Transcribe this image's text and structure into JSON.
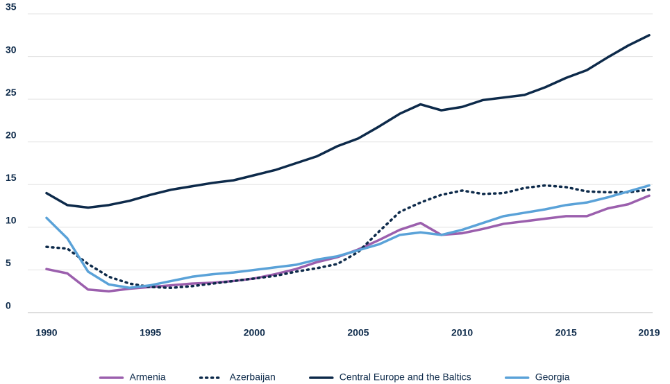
{
  "chart_data": {
    "type": "line",
    "x": [
      1990,
      1991,
      1992,
      1993,
      1994,
      1995,
      1996,
      1997,
      1998,
      1999,
      2000,
      2001,
      2002,
      2003,
      2004,
      2005,
      2006,
      2007,
      2008,
      2009,
      2010,
      2011,
      2012,
      2013,
      2014,
      2015,
      2016,
      2017,
      2018,
      2019
    ],
    "series": [
      {
        "name": "Armenia",
        "color": "#9b5fad",
        "dash": "solid",
        "values": [
          5.1,
          4.6,
          2.7,
          2.5,
          2.8,
          3.0,
          3.2,
          3.4,
          3.5,
          3.7,
          4.0,
          4.5,
          5.1,
          5.9,
          6.5,
          7.4,
          8.5,
          9.7,
          10.5,
          9.1,
          9.3,
          9.8,
          10.4,
          10.7,
          11.0,
          11.3,
          11.3,
          12.2,
          12.7,
          13.7
        ]
      },
      {
        "name": "Azerbaijan",
        "color": "#0d2a4a",
        "dash": "dotted",
        "values": [
          7.7,
          7.5,
          5.7,
          4.2,
          3.4,
          3.0,
          2.9,
          3.1,
          3.4,
          3.7,
          4.0,
          4.3,
          4.8,
          5.2,
          5.7,
          7.1,
          9.5,
          11.8,
          12.9,
          13.8,
          14.3,
          13.9,
          14.0,
          14.6,
          14.9,
          14.7,
          14.2,
          14.1,
          14.1,
          14.4
        ]
      },
      {
        "name": "Central Europe and the Baltics",
        "color": "#0d2a4a",
        "dash": "solid",
        "values": [
          14.0,
          12.6,
          12.3,
          12.6,
          13.1,
          13.8,
          14.4,
          14.8,
          15.2,
          15.5,
          16.1,
          16.7,
          17.5,
          18.3,
          19.5,
          20.4,
          21.8,
          23.3,
          24.4,
          23.7,
          24.1,
          24.9,
          25.2,
          25.5,
          26.4,
          27.5,
          28.4,
          29.9,
          31.3,
          32.5
        ]
      },
      {
        "name": "Georgia",
        "color": "#5aa2d8",
        "dash": "solid",
        "values": [
          11.1,
          8.7,
          4.8,
          3.3,
          2.9,
          3.2,
          3.7,
          4.2,
          4.5,
          4.7,
          5.0,
          5.3,
          5.6,
          6.2,
          6.6,
          7.3,
          8.0,
          9.1,
          9.4,
          9.1,
          9.7,
          10.5,
          11.3,
          11.7,
          12.1,
          12.6,
          12.9,
          13.5,
          14.2,
          14.9
        ]
      }
    ],
    "xlim": [
      1990,
      2019
    ],
    "xticks": [
      1990,
      1995,
      2000,
      2005,
      2010,
      2015,
      2019
    ],
    "ylim": [
      0,
      35
    ],
    "yticks": [
      0,
      5,
      10,
      15,
      20,
      25,
      30,
      35
    ],
    "grid": true,
    "legend": "bottom"
  }
}
